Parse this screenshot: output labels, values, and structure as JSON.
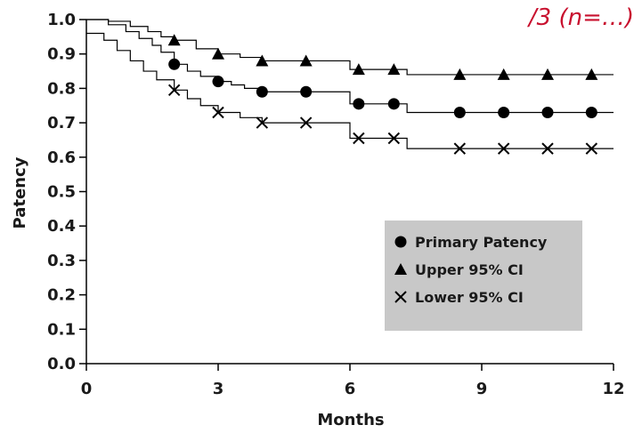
{
  "corner_fragment": "/3  (n=…)",
  "chart_data": {
    "type": "line",
    "title": "",
    "xlabel": "Months",
    "ylabel": "Patency",
    "xlim": [
      0,
      12
    ],
    "ylim": [
      0,
      1.0
    ],
    "x_ticks": [
      0,
      3,
      6,
      9,
      12
    ],
    "x_tick_labels": [
      "0",
      "3",
      "6",
      "9",
      "12"
    ],
    "y_ticks": [
      0,
      0.1,
      0.2,
      0.3,
      0.4,
      0.5,
      0.6,
      0.7,
      0.8,
      0.9,
      1.0
    ],
    "y_tick_labels": [
      "0.0",
      "0.1",
      "0.2",
      "0.3",
      "0.4",
      "0.5",
      "0.6",
      "0.7",
      "0.8",
      "0.9",
      "1.0"
    ],
    "grid": false,
    "legend_position": "bottom-right",
    "series": [
      {
        "name": "Primary Patency",
        "marker": "circle",
        "color": "#000000",
        "steps": [
          [
            0,
            1.0
          ],
          [
            0.5,
            0.985
          ],
          [
            0.9,
            0.965
          ],
          [
            1.2,
            0.945
          ],
          [
            1.5,
            0.925
          ],
          [
            1.7,
            0.905
          ],
          [
            2.0,
            0.87
          ],
          [
            2.3,
            0.85
          ],
          [
            2.6,
            0.835
          ],
          [
            3.0,
            0.82
          ],
          [
            3.3,
            0.81
          ],
          [
            3.6,
            0.8
          ],
          [
            4.0,
            0.79
          ],
          [
            5.0,
            0.79
          ],
          [
            6.0,
            0.755
          ],
          [
            7.0,
            0.755
          ],
          [
            7.3,
            0.73
          ],
          [
            12.0,
            0.73
          ]
        ],
        "markers_x": [
          2.0,
          3.0,
          4.0,
          5.0,
          6.2,
          7.0,
          8.5,
          9.5,
          10.5,
          11.5
        ],
        "markers_y": [
          0.87,
          0.82,
          0.79,
          0.79,
          0.755,
          0.755,
          0.73,
          0.73,
          0.73,
          0.73
        ]
      },
      {
        "name": "Upper 95% CI",
        "marker": "triangle",
        "color": "#000000",
        "steps": [
          [
            0,
            1.0
          ],
          [
            0.5,
            0.995
          ],
          [
            1.0,
            0.98
          ],
          [
            1.4,
            0.965
          ],
          [
            1.7,
            0.95
          ],
          [
            2.0,
            0.94
          ],
          [
            2.5,
            0.915
          ],
          [
            3.0,
            0.9
          ],
          [
            3.5,
            0.89
          ],
          [
            4.0,
            0.88
          ],
          [
            5.0,
            0.88
          ],
          [
            6.0,
            0.855
          ],
          [
            7.0,
            0.855
          ],
          [
            7.3,
            0.84
          ],
          [
            12.0,
            0.84
          ]
        ],
        "markers_x": [
          2.0,
          3.0,
          4.0,
          5.0,
          6.2,
          7.0,
          8.5,
          9.5,
          10.5,
          11.5
        ],
        "markers_y": [
          0.94,
          0.9,
          0.88,
          0.88,
          0.855,
          0.855,
          0.84,
          0.84,
          0.84,
          0.84
        ]
      },
      {
        "name": "Lower 95% CI",
        "marker": "x",
        "color": "#000000",
        "steps": [
          [
            0,
            0.96
          ],
          [
            0.4,
            0.94
          ],
          [
            0.7,
            0.91
          ],
          [
            1.0,
            0.88
          ],
          [
            1.3,
            0.85
          ],
          [
            1.6,
            0.825
          ],
          [
            2.0,
            0.795
          ],
          [
            2.3,
            0.77
          ],
          [
            2.6,
            0.75
          ],
          [
            3.0,
            0.73
          ],
          [
            3.5,
            0.715
          ],
          [
            4.0,
            0.7
          ],
          [
            5.0,
            0.7
          ],
          [
            6.0,
            0.655
          ],
          [
            7.0,
            0.655
          ],
          [
            7.3,
            0.625
          ],
          [
            12.0,
            0.625
          ]
        ],
        "markers_x": [
          2.0,
          3.0,
          4.0,
          5.0,
          6.2,
          7.0,
          8.5,
          9.5,
          10.5,
          11.5
        ],
        "markers_y": [
          0.795,
          0.73,
          0.7,
          0.7,
          0.655,
          0.655,
          0.625,
          0.625,
          0.625,
          0.625
        ]
      }
    ]
  }
}
